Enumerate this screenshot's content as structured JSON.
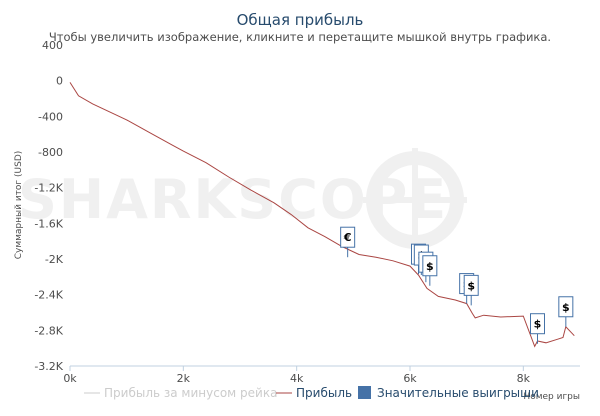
{
  "chart_data": {
    "type": "line",
    "title": "Общая прибыль",
    "subtitle": "Чтобы увеличить изображение, кликните и перетащите мышкой внутрь графика.",
    "ylabel": "Суммарный итог (USD)",
    "xlabel": "Номер игры",
    "watermark": "SHARKSCOPE",
    "xlim": [
      0,
      9000
    ],
    "ylim": [
      -3200,
      400
    ],
    "x_ticks": [
      0,
      2000,
      4000,
      6000,
      8000
    ],
    "x_tick_labels": [
      "0k",
      "2k",
      "4k",
      "6k",
      "8k"
    ],
    "y_ticks": [
      400,
      0,
      -400,
      -800,
      -1200,
      -1600,
      -2000,
      -2400,
      -2800,
      -3200
    ],
    "y_tick_labels": [
      "400",
      "0",
      "-400",
      "-800",
      "-1.2K",
      "-1.6K",
      "-2K",
      "-2.4K",
      "-2.8K",
      "-3.2K"
    ],
    "series": [
      {
        "name": "Прибыль за минусом рейка",
        "color": "#cccccc",
        "visible": false,
        "x": [],
        "y": []
      },
      {
        "name": "Прибыль",
        "color": "#aa4643",
        "visible": true,
        "x": [
          0,
          150,
          400,
          800,
          1000,
          1400,
          1800,
          2000,
          2400,
          2800,
          3200,
          3600,
          3900,
          4200,
          4500,
          4800,
          5100,
          5400,
          5700,
          6000,
          6150,
          6300,
          6500,
          6800,
          7000,
          7100,
          7150,
          7300,
          7600,
          8000,
          8200,
          8250,
          8400,
          8600,
          8700,
          8750,
          8900
        ],
        "y": [
          -20,
          -170,
          -260,
          -380,
          -440,
          -580,
          -720,
          -790,
          -920,
          -1080,
          -1230,
          -1370,
          -1500,
          -1650,
          -1750,
          -1860,
          -1950,
          -1980,
          -2020,
          -2080,
          -2180,
          -2330,
          -2420,
          -2460,
          -2500,
          -2610,
          -2660,
          -2630,
          -2650,
          -2640,
          -2980,
          -2920,
          -2940,
          -2900,
          -2880,
          -2760,
          -2860
        ]
      }
    ],
    "flags": [
      {
        "x": 4900,
        "y": -1980,
        "symbol": "€"
      },
      {
        "x": 6150,
        "y": -2170,
        "symbol": "$"
      },
      {
        "x": 6200,
        "y": -2180,
        "symbol": "$"
      },
      {
        "x": 6280,
        "y": -2260,
        "symbol": "$"
      },
      {
        "x": 6350,
        "y": -2300,
        "symbol": "$"
      },
      {
        "x": 7000,
        "y": -2500,
        "symbol": "$"
      },
      {
        "x": 7080,
        "y": -2520,
        "symbol": "$"
      },
      {
        "x": 8250,
        "y": -2950,
        "symbol": "$"
      },
      {
        "x": 8750,
        "y": -2760,
        "symbol": "$"
      }
    ],
    "legend": {
      "position": "bottom",
      "items": [
        {
          "label": "Прибыль за минусом рейка",
          "kind": "line",
          "color": "#cccccc",
          "visible": false
        },
        {
          "label": "Прибыль",
          "kind": "line",
          "color": "#aa4643",
          "visible": true
        },
        {
          "label": "Значительные выигрыши",
          "kind": "box",
          "color": "#4572a7",
          "visible": true
        }
      ]
    },
    "grid": false
  }
}
